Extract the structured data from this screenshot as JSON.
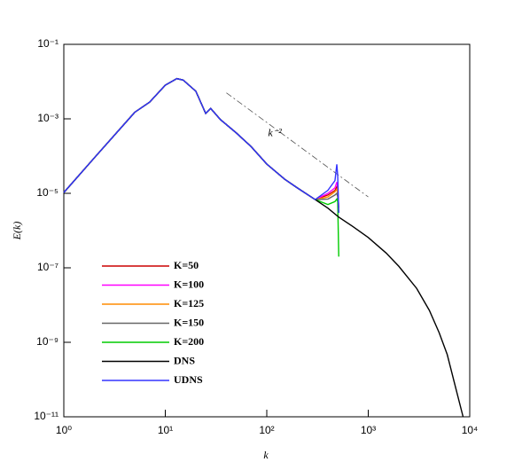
{
  "chart_data": {
    "type": "line",
    "xlabel": "k",
    "ylabel": "E(k)",
    "xlog": true,
    "ylog": true,
    "xlim": [
      1,
      10000
    ],
    "ylim": [
      1e-11,
      0.1
    ],
    "xticks": [
      {
        "value": 1,
        "label": "10⁰"
      },
      {
        "value": 10,
        "label": "10¹"
      },
      {
        "value": 100,
        "label": "10²"
      },
      {
        "value": 1000,
        "label": "10³"
      },
      {
        "value": 10000,
        "label": "10⁴"
      }
    ],
    "yticks": [
      {
        "value": 1e-11,
        "label": "10⁻¹¹"
      },
      {
        "value": 1e-09,
        "label": "10⁻⁹"
      },
      {
        "value": 1e-07,
        "label": "10⁻⁷"
      },
      {
        "value": 1e-05,
        "label": "10⁻⁵"
      },
      {
        "value": 0.001,
        "label": "10⁻³"
      },
      {
        "value": 0.1,
        "label": "10⁻¹"
      }
    ],
    "legend": "lower left",
    "annotation": {
      "text": "k⁻²",
      "x": 120,
      "y": 0.0004
    },
    "reference_line": {
      "x": [
        40,
        1000
      ],
      "y": [
        0.005,
        8e-06
      ]
    },
    "series": [
      {
        "name": "K=50",
        "color": "#cc0000",
        "x": [
          1,
          2,
          5,
          7,
          10,
          13,
          15,
          20,
          25,
          28,
          35,
          50,
          70,
          100,
          150,
          200,
          300,
          400,
          470,
          490,
          500,
          512
        ],
        "values": [
          1.05e-05,
          9e-05,
          0.0015,
          0.0028,
          0.008,
          0.012,
          0.011,
          0.0055,
          0.0014,
          0.0019,
          0.00095,
          0.00042,
          0.00018,
          6.1e-05,
          2.4e-05,
          1.4e-05,
          6.8e-06,
          9e-06,
          1.2e-05,
          1.5e-05,
          1.2e-05,
          4e-06
        ]
      },
      {
        "name": "K=100",
        "color": "#ff00ff",
        "x": [
          1,
          2,
          5,
          7,
          10,
          13,
          15,
          20,
          25,
          28,
          35,
          50,
          70,
          100,
          150,
          200,
          300,
          400,
          470,
          490,
          500,
          512
        ],
        "values": [
          1.05e-05,
          9e-05,
          0.0015,
          0.0028,
          0.008,
          0.012,
          0.011,
          0.0055,
          0.0014,
          0.0019,
          0.00095,
          0.00042,
          0.00018,
          6.1e-05,
          2.4e-05,
          1.4e-05,
          6.8e-06,
          1e-05,
          1.4e-05,
          2e-05,
          1.5e-05,
          4e-06
        ]
      },
      {
        "name": "K=125",
        "color": "#ff8c00",
        "x": [
          1,
          2,
          5,
          7,
          10,
          13,
          15,
          20,
          25,
          28,
          35,
          50,
          70,
          100,
          150,
          200,
          300,
          400,
          470,
          490,
          500,
          512
        ],
        "values": [
          1.05e-05,
          9e-05,
          0.0015,
          0.0028,
          0.008,
          0.012,
          0.011,
          0.0055,
          0.0014,
          0.0019,
          0.00095,
          0.00042,
          0.00018,
          6.1e-05,
          2.4e-05,
          1.4e-05,
          6.8e-06,
          8e-06,
          1.1e-05,
          1.3e-05,
          1e-05,
          3e-06
        ]
      },
      {
        "name": "K=150",
        "color": "#666666",
        "x": [
          1,
          2,
          5,
          7,
          10,
          13,
          15,
          20,
          25,
          28,
          35,
          50,
          70,
          100,
          150,
          200,
          300,
          400,
          470,
          490,
          500,
          512
        ],
        "values": [
          1.05e-05,
          9e-05,
          0.0015,
          0.0028,
          0.008,
          0.012,
          0.011,
          0.0055,
          0.0014,
          0.0019,
          0.00095,
          0.00042,
          0.00018,
          6.1e-05,
          2.4e-05,
          1.4e-05,
          6.8e-06,
          7e-06,
          9e-06,
          1e-05,
          8e-06,
          3e-06
        ]
      },
      {
        "name": "K=200",
        "color": "#00cc00",
        "x": [
          1,
          2,
          5,
          7,
          10,
          13,
          15,
          20,
          25,
          28,
          35,
          50,
          70,
          100,
          150,
          200,
          300,
          400,
          470,
          490,
          500,
          512
        ],
        "values": [
          1.05e-05,
          9e-05,
          0.0015,
          0.0028,
          0.008,
          0.012,
          0.011,
          0.0055,
          0.0014,
          0.0019,
          0.00095,
          0.00042,
          0.00018,
          6.1e-05,
          2.4e-05,
          1.4e-05,
          6.8e-06,
          5e-06,
          6e-06,
          7e-06,
          6e-06,
          2e-07
        ]
      },
      {
        "name": "DNS",
        "color": "#000000",
        "x": [
          1,
          2,
          5,
          7,
          10,
          13,
          15,
          20,
          25,
          28,
          35,
          50,
          70,
          100,
          150,
          200,
          300,
          400,
          512,
          700,
          1000,
          1500,
          2000,
          3000,
          4000,
          5000,
          6000,
          7000,
          8600
        ],
        "values": [
          1.05e-05,
          9e-05,
          0.0015,
          0.0028,
          0.008,
          0.012,
          0.011,
          0.0055,
          0.0014,
          0.0019,
          0.00095,
          0.00042,
          0.00018,
          6.1e-05,
          2.4e-05,
          1.4e-05,
          6.8e-06,
          4e-06,
          2.3e-06,
          1.3e-06,
          6.5e-07,
          2.5e-07,
          1.1e-07,
          2.8e-08,
          7.2e-09,
          1.8e-09,
          4.7e-10,
          9e-11,
          1e-11
        ]
      },
      {
        "name": "UDNS",
        "color": "#3333ff",
        "x": [
          1,
          2,
          5,
          7,
          10,
          13,
          15,
          20,
          25,
          28,
          35,
          50,
          70,
          100,
          150,
          200,
          300,
          400,
          470,
          490,
          500,
          512
        ],
        "values": [
          1.05e-05,
          9e-05,
          0.0015,
          0.0028,
          0.008,
          0.012,
          0.011,
          0.0055,
          0.0014,
          0.0019,
          0.00095,
          0.00042,
          0.00018,
          6.1e-05,
          2.4e-05,
          1.4e-05,
          6.8e-06,
          1.2e-05,
          2.2e-05,
          6e-05,
          3e-05,
          3e-06
        ]
      }
    ]
  }
}
